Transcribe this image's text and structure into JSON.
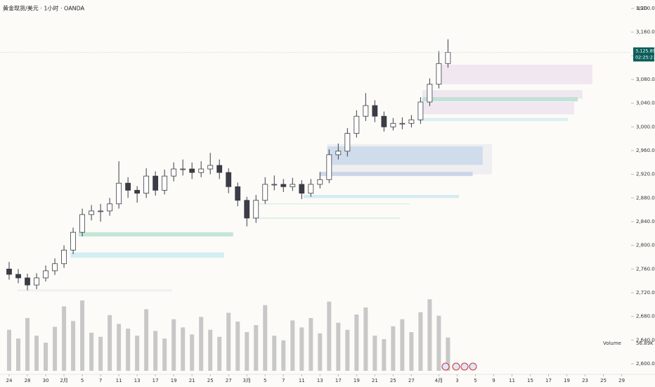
{
  "chart_data": {
    "type": "candlestick",
    "title": "黄金现货/美元 · 1小时 · OANDA",
    "currency": "USD",
    "xlim": [
      -1,
      67.8
    ],
    "ylim": [
      2600,
      3200
    ],
    "xticks": [
      {
        "value": 0,
        "label": "24"
      },
      {
        "value": 2,
        "label": "28"
      },
      {
        "value": 4,
        "label": "30"
      },
      {
        "value": 6,
        "label": "2月"
      },
      {
        "value": 8,
        "label": "5"
      },
      {
        "value": 10,
        "label": "7"
      },
      {
        "value": 12,
        "label": "11"
      },
      {
        "value": 14,
        "label": "13"
      },
      {
        "value": 16,
        "label": "17"
      },
      {
        "value": 18,
        "label": "19"
      },
      {
        "value": 20,
        "label": "21"
      },
      {
        "value": 22,
        "label": "25"
      },
      {
        "value": 24,
        "label": "27"
      },
      {
        "value": 26,
        "label": "3月"
      },
      {
        "value": 28,
        "label": "5"
      },
      {
        "value": 30,
        "label": "7"
      },
      {
        "value": 32,
        "label": "11"
      },
      {
        "value": 34,
        "label": "13"
      },
      {
        "value": 36,
        "label": "17"
      },
      {
        "value": 38,
        "label": "19"
      },
      {
        "value": 40,
        "label": "21"
      },
      {
        "value": 42,
        "label": "25"
      },
      {
        "value": 44,
        "label": "27"
      },
      {
        "value": 47,
        "label": "4月"
      },
      {
        "value": 49,
        "label": "3"
      },
      {
        "value": 51,
        "label": "5"
      },
      {
        "value": 53,
        "label": "9"
      },
      {
        "value": 55,
        "label": "11"
      },
      {
        "value": 57,
        "label": "15"
      },
      {
        "value": 59,
        "label": "17"
      },
      {
        "value": 61,
        "label": "19"
      },
      {
        "value": 63,
        "label": "23"
      },
      {
        "value": 65,
        "label": "25"
      },
      {
        "value": 67,
        "label": "29"
      }
    ],
    "yticks": [
      {
        "value": 2600,
        "label": "2,600.000"
      },
      {
        "value": 2640,
        "label": "2,640.000"
      },
      {
        "value": 2680,
        "label": "2,680.000"
      },
      {
        "value": 2720,
        "label": "2,720.000"
      },
      {
        "value": 2760,
        "label": "2,760.000"
      },
      {
        "value": 2800,
        "label": "2,800.000"
      },
      {
        "value": 2840,
        "label": "2,840.000"
      },
      {
        "value": 2880,
        "label": "2,880.000"
      },
      {
        "value": 2920,
        "label": "2,920.000"
      },
      {
        "value": 2960,
        "label": "2,960.000"
      },
      {
        "value": 3000,
        "label": "3,000.000"
      },
      {
        "value": 3040,
        "label": "3,040.000"
      },
      {
        "value": 3080,
        "label": "3,080.000"
      },
      {
        "value": 3120,
        "label": "3,120.000"
      },
      {
        "value": 3160,
        "label": "3,160.000"
      },
      {
        "value": 3200,
        "label": "3,200.000"
      }
    ],
    "up_color": "#ffffff",
    "down_color": "#3a3d45",
    "x": [
      0,
      1,
      2,
      3,
      4,
      5,
      6,
      7,
      8,
      9,
      10,
      11,
      12,
      13,
      14,
      15,
      16,
      17,
      18,
      19,
      20,
      21,
      22,
      23,
      24,
      25,
      26,
      27,
      28,
      29,
      30,
      31,
      32,
      33,
      34,
      35,
      36,
      37,
      38,
      39,
      40,
      41,
      42,
      43,
      44,
      45,
      46,
      47,
      48
    ],
    "open": [
      2760,
      2751,
      2745,
      2733,
      2745,
      2757,
      2769,
      2792,
      2822,
      2852,
      2858,
      2858,
      2870,
      2905,
      2893,
      2888,
      2917,
      2893,
      2917,
      2929,
      2929,
      2923,
      2929,
      2935,
      2923,
      2899,
      2876,
      2846,
      2876,
      2903,
      2903,
      2899,
      2903,
      2888,
      2903,
      2911,
      2953,
      2959,
      2989,
      3018,
      3036,
      3018,
      3000,
      3006,
      3006,
      3012,
      3042,
      3072,
      3107
    ],
    "high": [
      2772,
      2760,
      2752,
      2753,
      2766,
      2778,
      2800,
      2830,
      2862,
      2868,
      2870,
      2880,
      2942,
      2915,
      2900,
      2930,
      2925,
      2928,
      2940,
      2945,
      2940,
      2942,
      2956,
      2945,
      2930,
      2906,
      2882,
      2885,
      2915,
      2918,
      2912,
      2914,
      2910,
      2912,
      2924,
      2962,
      2972,
      2998,
      3028,
      3057,
      3045,
      3026,
      3015,
      3016,
      3020,
      3050,
      3082,
      3128,
      3148
    ],
    "low": [
      2742,
      2736,
      2724,
      2726,
      2739,
      2750,
      2762,
      2785,
      2815,
      2842,
      2840,
      2850,
      2862,
      2880,
      2872,
      2880,
      2884,
      2886,
      2908,
      2918,
      2912,
      2915,
      2920,
      2912,
      2888,
      2866,
      2832,
      2838,
      2870,
      2893,
      2890,
      2892,
      2878,
      2882,
      2896,
      2905,
      2945,
      2950,
      2982,
      3010,
      3008,
      2992,
      2994,
      2996,
      2999,
      3005,
      3035,
      3065,
      3100
    ],
    "close": [
      2751,
      2745,
      2733,
      2745,
      2757,
      2769,
      2792,
      2822,
      2852,
      2858,
      2858,
      2870,
      2905,
      2893,
      2888,
      2917,
      2893,
      2917,
      2929,
      2929,
      2923,
      2929,
      2935,
      2923,
      2899,
      2876,
      2846,
      2876,
      2903,
      2903,
      2899,
      2903,
      2888,
      2903,
      2911,
      2953,
      2959,
      2989,
      3018,
      3036,
      3018,
      3000,
      3006,
      3006,
      3012,
      3042,
      3072,
      3107,
      3125.89
    ],
    "last_price": {
      "value": 3125.89,
      "label": "3,125.890"
    },
    "countdown": "02:25:27",
    "volume": {
      "name": "Volume",
      "color": "#c8c8c8",
      "vlim": [
        0,
        150
      ],
      "values": [
        70,
        55,
        90,
        60,
        48,
        75,
        110,
        85,
        120,
        65,
        58,
        95,
        80,
        72,
        60,
        105,
        68,
        55,
        88,
        74,
        62,
        92,
        70,
        58,
        99,
        84,
        66,
        78,
        112,
        60,
        52,
        86,
        74,
        90,
        64,
        118,
        82,
        70,
        96,
        108,
        60,
        54,
        76,
        88,
        66,
        100,
        122,
        94,
        56.89
      ],
      "last_label": "56.89K"
    },
    "zones": [
      {
        "x": [
          46.7,
          63.8
        ],
        "y": [
          3072,
          3105
        ],
        "color": "#efe3ef"
      },
      {
        "x": [
          45.2,
          62.7
        ],
        "y": [
          3048,
          3062
        ],
        "color": "#ebe3ec"
      },
      {
        "x": [
          45.2,
          62.2
        ],
        "y": [
          3043,
          3050
        ],
        "color": "#b9ddd3"
      },
      {
        "x": [
          45.0,
          61.8
        ],
        "y": [
          3021,
          3042
        ],
        "color": "#eee3ef"
      },
      {
        "x": [
          44.8,
          61.1
        ],
        "y": [
          3010,
          3015
        ],
        "color": "#d4ecef"
      },
      {
        "x": [
          34.8,
          52.8
        ],
        "y": [
          2920,
          2971
        ],
        "color": "#ecebee"
      },
      {
        "x": [
          34.8,
          51.8
        ],
        "y": [
          2936,
          2967
        ],
        "color": "#c9d8ea"
      },
      {
        "x": [
          34.0,
          50.7
        ],
        "y": [
          2917,
          2924
        ],
        "color": "#c6cfe8"
      },
      {
        "x": [
          32.2,
          49.2
        ],
        "y": [
          2880,
          2885
        ],
        "color": "#cde8ef"
      },
      {
        "x": [
          27.1,
          43.8
        ],
        "y": [
          2869,
          2871
        ],
        "color": "#d8f0df"
      },
      {
        "x": [
          26.5,
          42.8
        ],
        "y": [
          2845,
          2847
        ],
        "color": "#d3f0dc"
      },
      {
        "x": [
          7.6,
          24.5
        ],
        "y": [
          2815,
          2822
        ],
        "color": "#b6e3d3"
      },
      {
        "x": [
          6.7,
          23.5
        ],
        "y": [
          2779,
          2788
        ],
        "color": "#cdebf0"
      },
      {
        "x": [
          0.9,
          17.8
        ],
        "y": [
          2722,
          2726
        ],
        "color": "#efeeee"
      }
    ]
  }
}
